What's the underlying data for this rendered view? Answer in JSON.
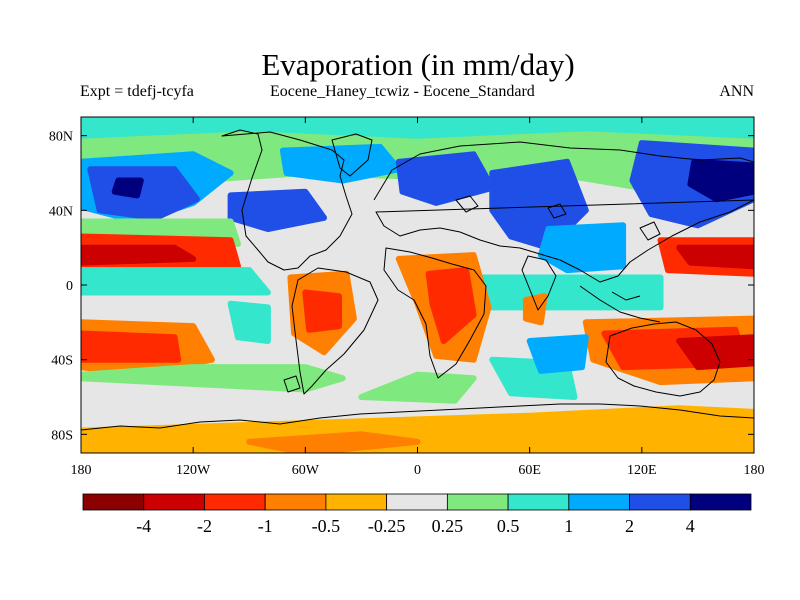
{
  "title": "Evaporation (in mm/day)",
  "subtitle_left": "Expt = tdefj-tcyfa",
  "subtitle_center": "Eocene_Haney_tcwiz - Eocene_Standard",
  "subtitle_right": "ANN",
  "axes": {
    "y_ticks": [
      "80N",
      "40N",
      "0",
      "40S",
      "80S"
    ],
    "x_ticks": [
      "180",
      "120W",
      "60W",
      "0",
      "60E",
      "120E",
      "180"
    ]
  },
  "colorbar": {
    "colors": [
      "#8b0000",
      "#cc0000",
      "#ff2a00",
      "#ff7f00",
      "#ffb300",
      "#e6e6e6",
      "#7fe87f",
      "#33e6cc",
      "#00aaff",
      "#1f4fe6",
      "#00007f"
    ],
    "labels": [
      "-4",
      "-2",
      "-1",
      "-0.5",
      "-0.25",
      "0.25",
      "0.5",
      "1",
      "2",
      "4"
    ]
  },
  "map_fill": {
    "background": "#e6e6e6",
    "regions": [
      {
        "c": 6,
        "pts": [
          [
            -180,
            82
          ],
          [
            180,
            82
          ],
          [
            180,
            60
          ],
          [
            120,
            52
          ],
          [
            60,
            62
          ],
          [
            0,
            58
          ],
          [
            -60,
            60
          ],
          [
            -120,
            56
          ],
          [
            -180,
            62
          ]
        ]
      },
      {
        "c": 7,
        "pts": [
          [
            -180,
            90
          ],
          [
            180,
            90
          ],
          [
            180,
            80
          ],
          [
            90,
            84
          ],
          [
            0,
            80
          ],
          [
            -90,
            84
          ],
          [
            -180,
            80
          ]
        ]
      },
      {
        "c": 8,
        "pts": [
          [
            -180,
            66
          ],
          [
            -120,
            70
          ],
          [
            -100,
            60
          ],
          [
            -120,
            44
          ],
          [
            -150,
            34
          ],
          [
            -180,
            42
          ]
        ]
      },
      {
        "c": 9,
        "pts": [
          [
            -175,
            62
          ],
          [
            -130,
            62
          ],
          [
            -118,
            46
          ],
          [
            -140,
            36
          ],
          [
            -170,
            40
          ]
        ]
      },
      {
        "c": 10,
        "pts": [
          [
            -160,
            56
          ],
          [
            -148,
            56
          ],
          [
            -150,
            48
          ],
          [
            -162,
            50
          ]
        ]
      },
      {
        "c": 9,
        "pts": [
          [
            -100,
            48
          ],
          [
            -60,
            50
          ],
          [
            -50,
            36
          ],
          [
            -80,
            30
          ],
          [
            -100,
            36
          ]
        ]
      },
      {
        "c": 8,
        "pts": [
          [
            -72,
            72
          ],
          [
            -20,
            74
          ],
          [
            -10,
            62
          ],
          [
            -40,
            56
          ],
          [
            -70,
            60
          ]
        ]
      },
      {
        "c": 9,
        "pts": [
          [
            -10,
            66
          ],
          [
            30,
            70
          ],
          [
            40,
            52
          ],
          [
            10,
            44
          ],
          [
            -8,
            50
          ]
        ]
      },
      {
        "c": 9,
        "pts": [
          [
            40,
            60
          ],
          [
            80,
            66
          ],
          [
            90,
            40
          ],
          [
            70,
            20
          ],
          [
            50,
            26
          ],
          [
            40,
            40
          ]
        ]
      },
      {
        "c": 8,
        "pts": [
          [
            70,
            30
          ],
          [
            110,
            32
          ],
          [
            110,
            10
          ],
          [
            80,
            8
          ],
          [
            66,
            16
          ]
        ]
      },
      {
        "c": 9,
        "pts": [
          [
            120,
            76
          ],
          [
            180,
            72
          ],
          [
            180,
            46
          ],
          [
            150,
            32
          ],
          [
            125,
            38
          ],
          [
            115,
            56
          ]
        ]
      },
      {
        "c": 10,
        "pts": [
          [
            148,
            66
          ],
          [
            180,
            64
          ],
          [
            180,
            50
          ],
          [
            160,
            46
          ],
          [
            146,
            54
          ]
        ]
      },
      {
        "c": 6,
        "pts": [
          [
            -180,
            34
          ],
          [
            -100,
            34
          ],
          [
            -96,
            22
          ],
          [
            -180,
            22
          ]
        ]
      },
      {
        "c": 2,
        "pts": [
          [
            -180,
            26
          ],
          [
            -100,
            24
          ],
          [
            -96,
            10
          ],
          [
            -180,
            8
          ]
        ]
      },
      {
        "c": 1,
        "pts": [
          [
            -180,
            20
          ],
          [
            -130,
            20
          ],
          [
            -120,
            14
          ],
          [
            -180,
            12
          ]
        ]
      },
      {
        "c": 2,
        "pts": [
          [
            130,
            24
          ],
          [
            180,
            24
          ],
          [
            180,
            6
          ],
          [
            134,
            8
          ]
        ]
      },
      {
        "c": 1,
        "pts": [
          [
            140,
            20
          ],
          [
            180,
            20
          ],
          [
            180,
            10
          ],
          [
            146,
            12
          ]
        ]
      },
      {
        "c": 7,
        "pts": [
          [
            -180,
            8
          ],
          [
            -90,
            8
          ],
          [
            -80,
            -4
          ],
          [
            -180,
            -4
          ]
        ]
      },
      {
        "c": 7,
        "pts": [
          [
            30,
            4
          ],
          [
            130,
            4
          ],
          [
            130,
            -12
          ],
          [
            30,
            -12
          ]
        ]
      },
      {
        "c": 3,
        "pts": [
          [
            -68,
            4
          ],
          [
            -38,
            6
          ],
          [
            -34,
            -18
          ],
          [
            -50,
            -36
          ],
          [
            -66,
            -26
          ]
        ]
      },
      {
        "c": 2,
        "pts": [
          [
            -60,
            -4
          ],
          [
            -42,
            -6
          ],
          [
            -42,
            -22
          ],
          [
            -58,
            -24
          ]
        ]
      },
      {
        "c": 3,
        "pts": [
          [
            -10,
            14
          ],
          [
            30,
            16
          ],
          [
            38,
            -12
          ],
          [
            30,
            -40
          ],
          [
            10,
            -38
          ],
          [
            0,
            -10
          ]
        ]
      },
      {
        "c": 2,
        "pts": [
          [
            6,
            6
          ],
          [
            26,
            8
          ],
          [
            30,
            -16
          ],
          [
            14,
            -30
          ],
          [
            8,
            -10
          ]
        ]
      },
      {
        "c": 3,
        "pts": [
          [
            58,
            -8
          ],
          [
            68,
            -6
          ],
          [
            66,
            -20
          ],
          [
            58,
            -18
          ]
        ]
      },
      {
        "c": 3,
        "pts": [
          [
            -180,
            -20
          ],
          [
            -120,
            -22
          ],
          [
            -110,
            -40
          ],
          [
            -150,
            -48
          ],
          [
            -180,
            -44
          ]
        ]
      },
      {
        "c": 2,
        "pts": [
          [
            -180,
            -26
          ],
          [
            -130,
            -28
          ],
          [
            -128,
            -40
          ],
          [
            -180,
            -40
          ]
        ]
      },
      {
        "c": 3,
        "pts": [
          [
            90,
            -20
          ],
          [
            180,
            -18
          ],
          [
            180,
            -50
          ],
          [
            130,
            -52
          ],
          [
            94,
            -40
          ]
        ]
      },
      {
        "c": 2,
        "pts": [
          [
            100,
            -26
          ],
          [
            170,
            -24
          ],
          [
            176,
            -42
          ],
          [
            110,
            -44
          ]
        ]
      },
      {
        "c": 1,
        "pts": [
          [
            140,
            -30
          ],
          [
            180,
            -28
          ],
          [
            180,
            -42
          ],
          [
            150,
            -44
          ]
        ]
      },
      {
        "c": 6,
        "pts": [
          [
            -180,
            -50
          ],
          [
            -60,
            -56
          ],
          [
            -40,
            -50
          ],
          [
            -60,
            -44
          ],
          [
            -120,
            -44
          ],
          [
            -180,
            -48
          ]
        ]
      },
      {
        "c": 7,
        "pts": [
          [
            -100,
            -10
          ],
          [
            -80,
            -12
          ],
          [
            -80,
            -30
          ],
          [
            -96,
            -28
          ]
        ]
      },
      {
        "c": 4,
        "pts": [
          [
            -180,
            -78
          ],
          [
            -120,
            -76
          ],
          [
            -60,
            -74
          ],
          [
            0,
            -72
          ],
          [
            60,
            -70
          ],
          [
            140,
            -66
          ],
          [
            180,
            -68
          ],
          [
            180,
            -90
          ],
          [
            -180,
            -90
          ]
        ]
      },
      {
        "c": 3,
        "pts": [
          [
            -90,
            -84
          ],
          [
            -30,
            -80
          ],
          [
            0,
            -84
          ],
          [
            -60,
            -90
          ]
        ]
      },
      {
        "c": 6,
        "pts": [
          [
            -30,
            -60
          ],
          [
            20,
            -62
          ],
          [
            30,
            -50
          ],
          [
            0,
            -48
          ]
        ]
      },
      {
        "c": 7,
        "pts": [
          [
            40,
            -40
          ],
          [
            80,
            -42
          ],
          [
            84,
            -60
          ],
          [
            50,
            -58
          ]
        ]
      },
      {
        "c": 8,
        "pts": [
          [
            60,
            -30
          ],
          [
            90,
            -28
          ],
          [
            88,
            -44
          ],
          [
            66,
            -46
          ]
        ]
      }
    ]
  }
}
